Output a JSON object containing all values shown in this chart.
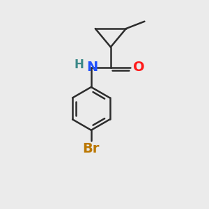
{
  "background_color": "#ebebeb",
  "bond_color": "#2c2c2c",
  "N_color": "#2050ff",
  "O_color": "#ff1a1a",
  "Br_color": "#bb7700",
  "H_color": "#3a8888",
  "line_width": 1.8,
  "fig_size": [
    3.0,
    3.0
  ],
  "dpi": 100,
  "xlim": [
    0,
    10
  ],
  "ylim": [
    0,
    10
  ]
}
